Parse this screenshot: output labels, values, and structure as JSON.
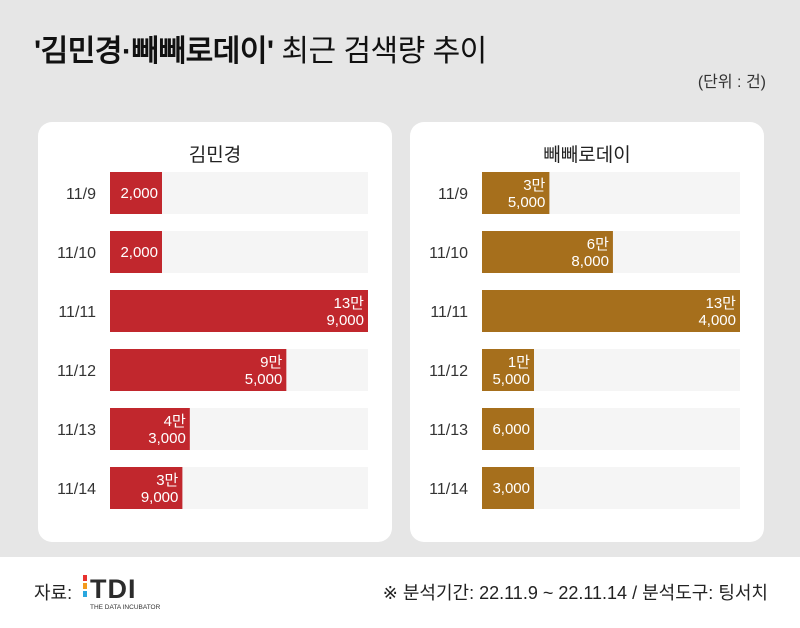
{
  "title": {
    "names": "'김민경·빼빼로데이'",
    "rest": "최근 검색량 추이"
  },
  "unit_label": "(단위 : 건)",
  "footer": {
    "source_label": "자료:",
    "logo_text": "TDI",
    "logo_subtext": "THE DATA INCUBATOR",
    "note": "※ 분석기간: 22.11.9 ~ 22.11.14 / 분석도구: 팅서치"
  },
  "colors": {
    "left_bar": "#c1272d",
    "right_bar": "#a66f1c",
    "track": "#f5f5f5"
  },
  "chart_data": [
    {
      "type": "bar",
      "title": "김민경",
      "categories": [
        "11/9",
        "11/10",
        "11/11",
        "11/12",
        "11/13",
        "11/14"
      ],
      "values": [
        2000,
        2000,
        139000,
        95000,
        43000,
        39000
      ],
      "labels": [
        [
          "2,000"
        ],
        [
          "2,000"
        ],
        [
          "13만",
          "9,000"
        ],
        [
          "9만",
          "5,000"
        ],
        [
          "4만",
          "3,000"
        ],
        [
          "3만",
          "9,000"
        ]
      ],
      "xlim": [
        0,
        139000
      ]
    },
    {
      "type": "bar",
      "title": "빼빼로데이",
      "categories": [
        "11/9",
        "11/10",
        "11/11",
        "11/12",
        "11/13",
        "11/14"
      ],
      "values": [
        35000,
        68000,
        134000,
        15000,
        6000,
        3000
      ],
      "labels": [
        [
          "3만",
          "5,000"
        ],
        [
          "6만",
          "8,000"
        ],
        [
          "13만",
          "4,000"
        ],
        [
          "1만",
          "5,000"
        ],
        [
          "6,000"
        ],
        [
          "3,000"
        ]
      ],
      "xlim": [
        0,
        134000
      ]
    }
  ]
}
